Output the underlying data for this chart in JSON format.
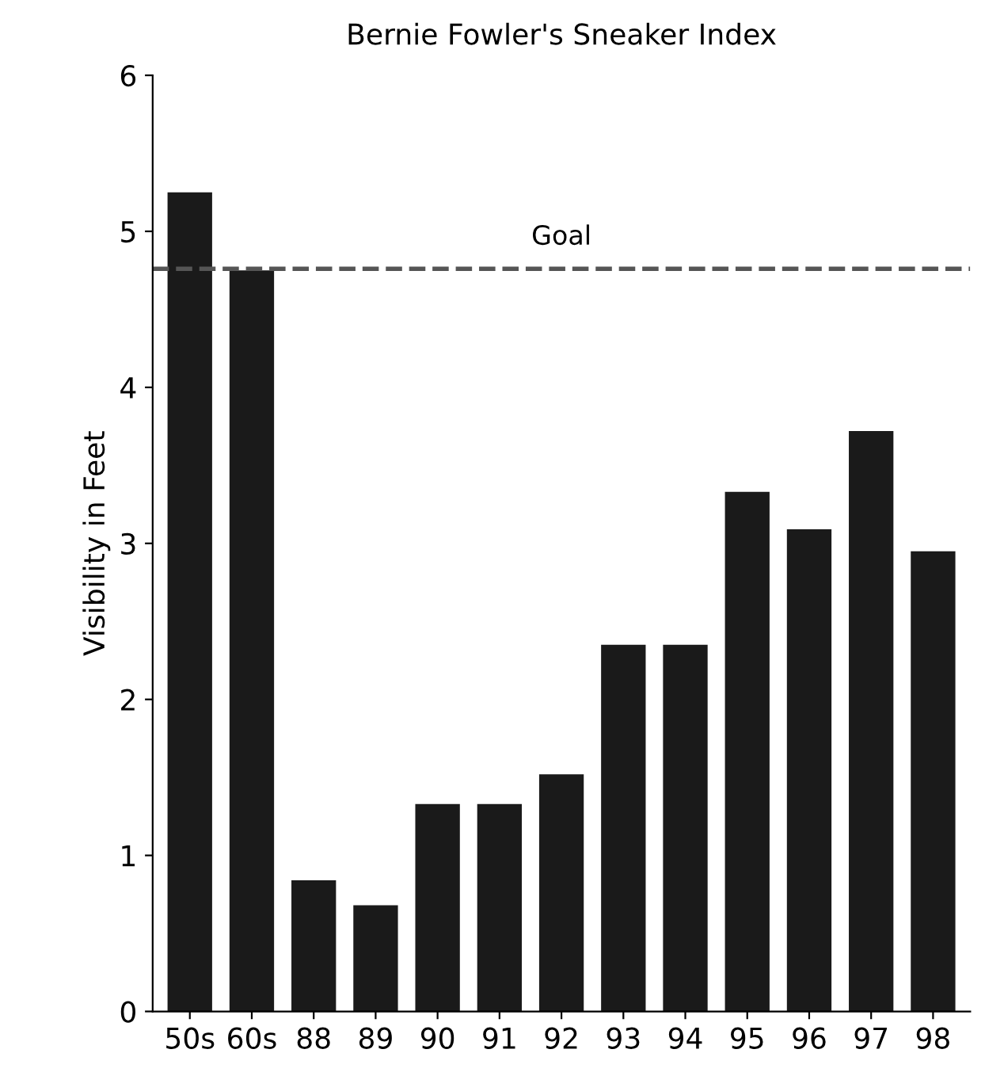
{
  "chart_data": {
    "type": "bar",
    "title": "Bernie Fowler's Sneaker Index",
    "ylabel": "Visibility in Feet",
    "categories": [
      "50s",
      "60s",
      "88",
      "89",
      "90",
      "91",
      "92",
      "93",
      "94",
      "95",
      "96",
      "97",
      "98"
    ],
    "values": [
      5.25,
      4.75,
      0.84,
      0.68,
      1.33,
      1.33,
      1.52,
      2.35,
      2.35,
      3.33,
      3.09,
      3.72,
      2.95
    ],
    "color": "#1a1a1a",
    "ylim": [
      0,
      6
    ],
    "yticks": [
      0,
      1,
      2,
      3,
      4,
      5,
      6
    ],
    "grid": false,
    "ref_lines": [
      {
        "axis": "y",
        "value": 4.76,
        "label": "Goal",
        "color": "#555555",
        "line_style": "dashed"
      }
    ]
  }
}
